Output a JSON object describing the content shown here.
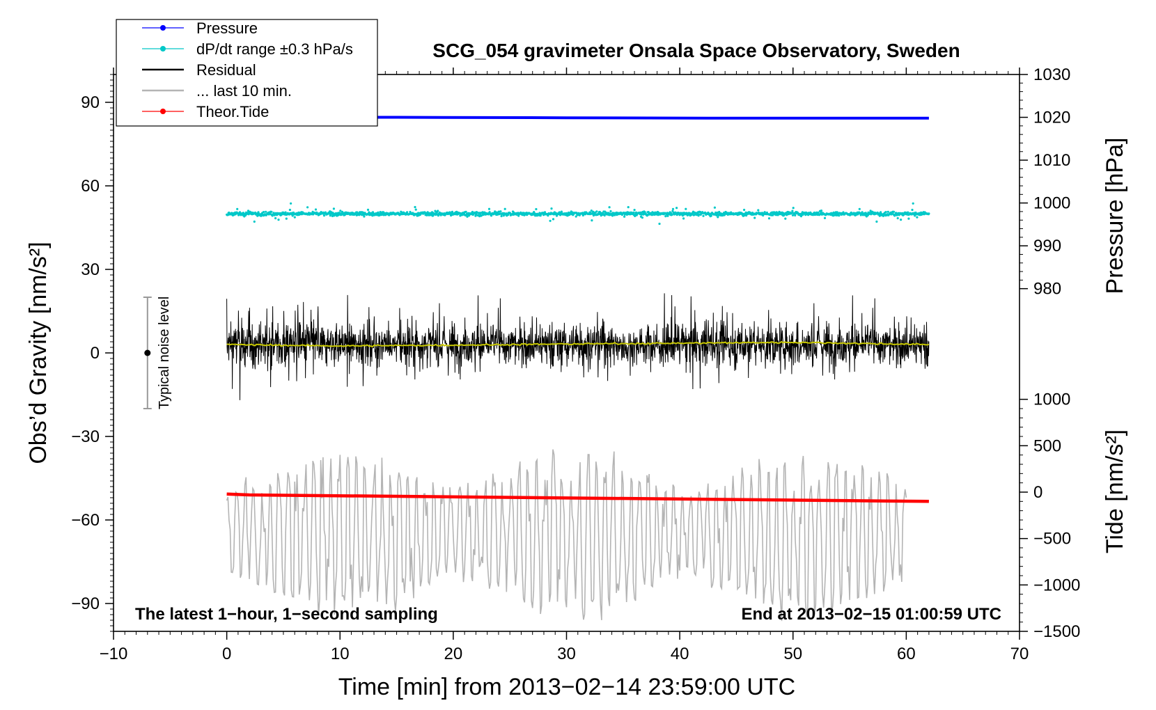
{
  "chart_data": {
    "type": "line",
    "title": "SCG_054 gravimeter Onsala Space Observatory, Sweden",
    "xlabel": "Time [min] from 2013−02−14 23:59:00 UTC",
    "ylabel_left": "Obs’d Gravity [nm/s²]",
    "ylabel_pressure": "Pressure [hPa]",
    "ylabel_tide": "Tide [nm/s²]",
    "xlim": [
      -10,
      70
    ],
    "ylim": [
      -100,
      100
    ],
    "pressure_lim": [
      900,
      1030
    ],
    "tide_lim": [
      -1500,
      4500
    ],
    "x_ticks": [
      "−10",
      "0",
      "10",
      "20",
      "30",
      "40",
      "50",
      "60",
      "70"
    ],
    "x_tick_values": [
      -10,
      0,
      10,
      20,
      30,
      40,
      50,
      60,
      70
    ],
    "y_ticks": [
      "90",
      "60",
      "30",
      "0",
      "−30",
      "−60",
      "−90"
    ],
    "y_tick_values": [
      90,
      60,
      30,
      0,
      -30,
      -60,
      -90
    ],
    "pressure_ticks": [
      "1030",
      "1020",
      "1010",
      "1000",
      "990",
      "980"
    ],
    "pressure_tick_values": [
      1030,
      1020,
      1010,
      1000,
      990,
      980
    ],
    "tide_ticks": [
      "1000",
      "500",
      "0",
      "−500",
      "−1000",
      "−1500"
    ],
    "tide_tick_values": [
      1000,
      500,
      0,
      -500,
      -1000,
      -1500
    ],
    "legend": {
      "position": "top-left",
      "entries": [
        {
          "label": "Pressure",
          "color": "#0000ff",
          "style": "line-dot"
        },
        {
          "label": "dP/dt range ±0.3 hPa/s",
          "color": "#00c8c8",
          "style": "line-dot"
        },
        {
          "label": "Residual",
          "color": "#000000",
          "style": "line"
        },
        {
          "label": "... last 10 min.",
          "color": "#b4b4b4",
          "style": "line"
        },
        {
          "label": "Theor.Tide",
          "color": "#ff0000",
          "style": "line-dot"
        }
      ]
    },
    "annotations": {
      "left": "The latest 1−hour, 1−second sampling",
      "right": "End at 2013−02−15 01:00:59 UTC",
      "noise_label": "Typical noise level",
      "noise_bar": {
        "x": -7,
        "center": 0,
        "half_range": 20
      }
    },
    "series": [
      {
        "name": "Pressure",
        "axis": "pressure",
        "color": "#0000ff",
        "x": [
          0,
          15,
          30,
          45,
          62
        ],
        "values": [
          1020.0,
          1020.0,
          1019.9,
          1019.8,
          1019.8
        ]
      },
      {
        "name": "dP/dt range",
        "axis": "gravity",
        "color": "#00c8c8",
        "kind": "scatter",
        "x_range": [
          0,
          62
        ],
        "center": 50,
        "spread": 1.5,
        "outliers": 8
      },
      {
        "name": "Residual",
        "axis": "gravity",
        "color": "#000000",
        "kind": "noise",
        "x_range": [
          0,
          62
        ],
        "center": 3,
        "amplitude": 30
      },
      {
        "name": "Residual mean",
        "axis": "gravity",
        "color": "#c8c800",
        "x": [
          0,
          10,
          20,
          30,
          40,
          50,
          62
        ],
        "values": [
          3,
          2.5,
          2.8,
          3.2,
          3.5,
          3.8,
          3.0
        ]
      },
      {
        "name": "... last 10 min.",
        "axis": "gravity",
        "color": "#b4b4b4",
        "kind": "oscillation",
        "x_range": [
          0,
          60
        ],
        "center": -65,
        "amplitude": 25
      },
      {
        "name": "Theor.Tide",
        "axis": "tide",
        "color": "#ff0000",
        "x": [
          0,
          2,
          62
        ],
        "values": [
          -20,
          -30,
          -100
        ]
      }
    ]
  }
}
